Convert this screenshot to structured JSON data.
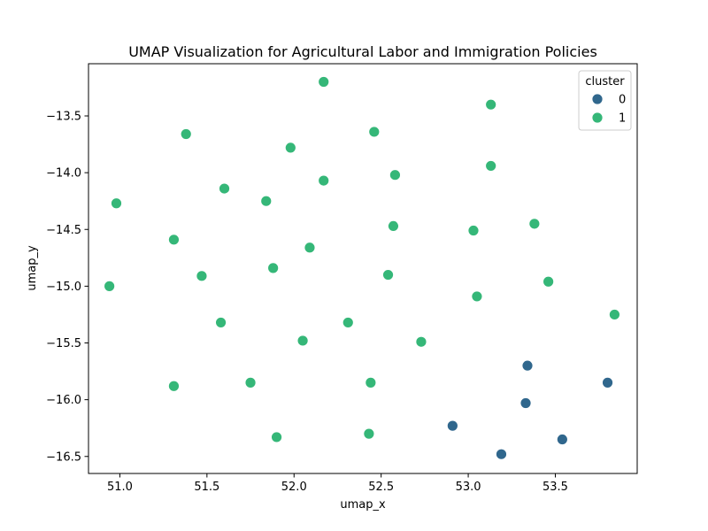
{
  "chart_data": {
    "type": "scatter",
    "title": "UMAP Visualization for Agricultural Labor and Immigration Policies",
    "xlabel": "umap_x",
    "ylabel": "umap_y",
    "xlim": [
      50.82,
      53.97
    ],
    "ylim": [
      -16.65,
      -13.04
    ],
    "xticks": [
      {
        "value": 51.0,
        "label": "51.0"
      },
      {
        "value": 51.5,
        "label": "51.5"
      },
      {
        "value": 52.0,
        "label": "52.0"
      },
      {
        "value": 52.5,
        "label": "52.5"
      },
      {
        "value": 53.0,
        "label": "53.0"
      },
      {
        "value": 53.5,
        "label": "53.5"
      }
    ],
    "yticks": [
      {
        "value": -13.5,
        "label": "−13.5"
      },
      {
        "value": -14.0,
        "label": "−14.0"
      },
      {
        "value": -14.5,
        "label": "−14.5"
      },
      {
        "value": -15.0,
        "label": "−15.0"
      },
      {
        "value": -15.5,
        "label": "−15.5"
      },
      {
        "value": -16.0,
        "label": "−16.0"
      },
      {
        "value": -16.5,
        "label": "−16.5"
      }
    ],
    "grid": false,
    "legend": {
      "title": "cluster",
      "placement": "top-right",
      "entries": [
        {
          "label": "0",
          "color": "#30678d"
        },
        {
          "label": "1",
          "color": "#35b778"
        }
      ]
    },
    "series": [
      {
        "name": "0",
        "color": "#30678d",
        "points": [
          {
            "x": 53.34,
            "y": -15.7
          },
          {
            "x": 53.8,
            "y": -15.85
          },
          {
            "x": 53.33,
            "y": -16.03
          },
          {
            "x": 52.91,
            "y": -16.23
          },
          {
            "x": 53.54,
            "y": -16.35
          },
          {
            "x": 53.19,
            "y": -16.48
          }
        ]
      },
      {
        "name": "1",
        "color": "#35b778",
        "points": [
          {
            "x": 52.17,
            "y": -13.2
          },
          {
            "x": 53.13,
            "y": -13.4
          },
          {
            "x": 51.38,
            "y": -13.66
          },
          {
            "x": 52.46,
            "y": -13.64
          },
          {
            "x": 51.98,
            "y": -13.78
          },
          {
            "x": 53.13,
            "y": -13.94
          },
          {
            "x": 52.58,
            "y": -14.02
          },
          {
            "x": 52.17,
            "y": -14.07
          },
          {
            "x": 51.6,
            "y": -14.14
          },
          {
            "x": 51.84,
            "y": -14.25
          },
          {
            "x": 50.98,
            "y": -14.27
          },
          {
            "x": 53.38,
            "y": -14.45
          },
          {
            "x": 52.57,
            "y": -14.47
          },
          {
            "x": 53.03,
            "y": -14.51
          },
          {
            "x": 51.31,
            "y": -14.59
          },
          {
            "x": 52.09,
            "y": -14.66
          },
          {
            "x": 51.88,
            "y": -14.84
          },
          {
            "x": 51.47,
            "y": -14.91
          },
          {
            "x": 52.54,
            "y": -14.9
          },
          {
            "x": 53.46,
            "y": -14.96
          },
          {
            "x": 50.94,
            "y": -15.0
          },
          {
            "x": 53.05,
            "y": -15.09
          },
          {
            "x": 53.84,
            "y": -15.25
          },
          {
            "x": 51.58,
            "y": -15.32
          },
          {
            "x": 52.31,
            "y": -15.32
          },
          {
            "x": 52.05,
            "y": -15.48
          },
          {
            "x": 52.73,
            "y": -15.49
          },
          {
            "x": 51.75,
            "y": -15.85
          },
          {
            "x": 52.44,
            "y": -15.85
          },
          {
            "x": 51.31,
            "y": -15.88
          },
          {
            "x": 52.43,
            "y": -16.3
          },
          {
            "x": 51.9,
            "y": -16.33
          }
        ]
      }
    ]
  }
}
